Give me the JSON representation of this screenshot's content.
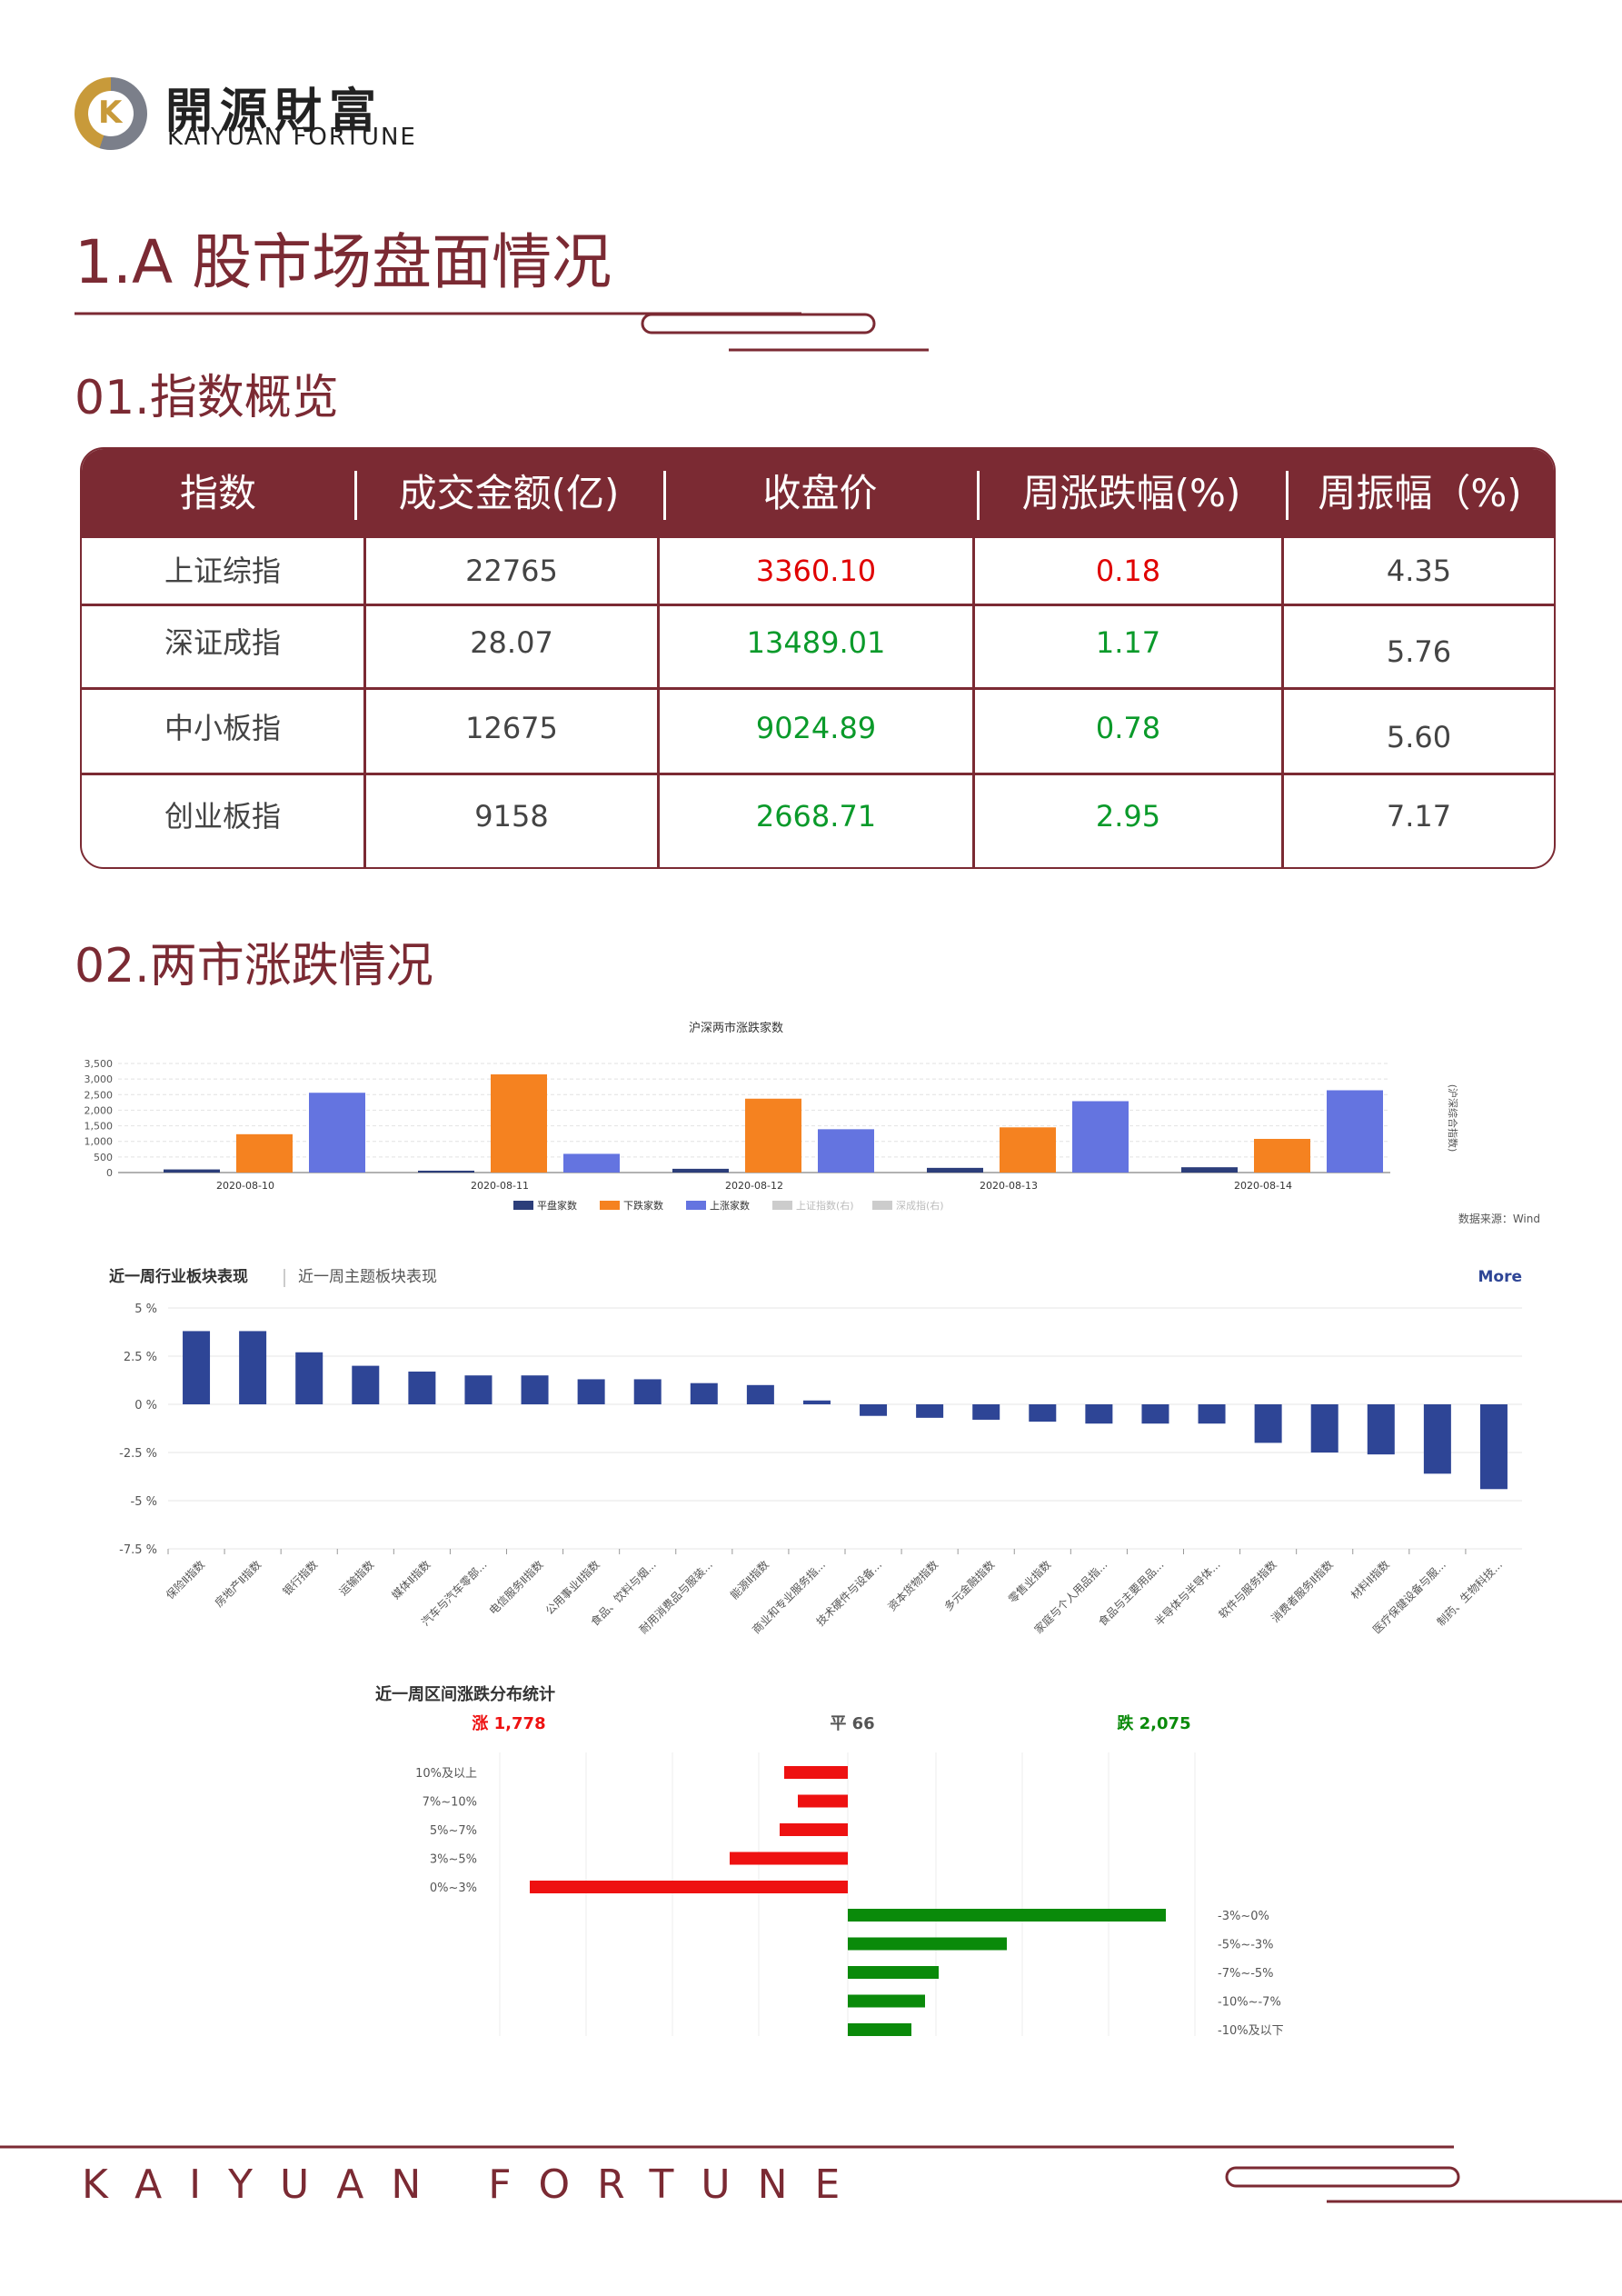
{
  "brand": {
    "cn": "開源財富",
    "en": "KAIYUAN FORTUNE"
  },
  "section_title": "1.A 股市场盘面情况",
  "sub1": "01.指数概览",
  "sub2": "02.两市涨跌情况",
  "table": {
    "headers": [
      "指数",
      "成交金额(亿)",
      "收盘价",
      "周涨跌幅(%)",
      "周振幅（%)"
    ],
    "rows": [
      {
        "name": "上证综指",
        "amount": "22765",
        "close": "3360.10",
        "chg": "0.18",
        "amp": "4.35",
        "close_color": "red",
        "chg_color": "red"
      },
      {
        "name": "深证成指",
        "amount": "28.07",
        "close": "13489.01",
        "chg": "1.17",
        "amp": "5.76",
        "close_color": "green",
        "chg_color": "green"
      },
      {
        "name": "中小板指",
        "amount": "12675",
        "close": "9024.89",
        "chg": "0.78",
        "amp": "5.60",
        "close_color": "green",
        "chg_color": "green"
      },
      {
        "name": "创业板指",
        "amount": "9158",
        "close": "2668.71",
        "chg": "2.95",
        "amp": "7.17",
        "close_color": "green",
        "chg_color": "green"
      }
    ]
  },
  "chart1_source": "数据来源：Wind",
  "chart2_tabs": [
    "近一周行业板块表现",
    "近一周主题板块表现"
  ],
  "chart2_more": "More",
  "chart3_title": "近一周区间涨跌分布统计",
  "chart3_summary": {
    "up": "涨 1,778",
    "flat": "平 66",
    "down": "跌 2,075"
  },
  "chart_data": [
    {
      "type": "bar",
      "title": "沪深两市涨跌家数",
      "categories": [
        "2020-08-10",
        "2020-08-11",
        "2020-08-12",
        "2020-08-13",
        "2020-08-14"
      ],
      "series": [
        {
          "name": "平盘家数",
          "color": "#2c3e7a",
          "values": [
            100,
            60,
            120,
            150,
            170
          ]
        },
        {
          "name": "下跌家数",
          "color": "#f58220",
          "values": [
            1230,
            3150,
            2370,
            1450,
            1080
          ]
        },
        {
          "name": "上涨家数",
          "color": "#6474e0",
          "values": [
            2560,
            600,
            1390,
            2290,
            2640
          ]
        }
      ],
      "legend_extra": [
        "上证指数(右)",
        "深成指(右)"
      ],
      "ylim": [
        0,
        3500
      ],
      "yticks": [
        "3,500",
        "3,000",
        "2,500",
        "2,000",
        "1,500",
        "1,000",
        "500",
        "0"
      ],
      "right_axis_label": "(沪深综合指数)"
    },
    {
      "type": "bar",
      "categories": [
        "保险Ⅱ指数",
        "房地产Ⅱ指数",
        "银行指数",
        "运输指数",
        "媒体Ⅱ指数",
        "汽车与汽车零部...",
        "电信服务Ⅱ指数",
        "公用事业Ⅱ指数",
        "食品、饮料与烟...",
        "耐用消费品与服装...",
        "能源Ⅱ指数",
        "商业和专业服务指...",
        "技术硬件与设备...",
        "资本货物指数",
        "多元金融指数",
        "零售业指数",
        "家庭与个人用品指...",
        "食品与主要用品...",
        "半导体与半导体...",
        "软件与服务指数",
        "消费者服务Ⅱ指数",
        "材料Ⅱ指数",
        "医疗保健设备与服...",
        "制药、生物科技..."
      ],
      "values": [
        3.8,
        3.8,
        2.7,
        2.0,
        1.7,
        1.5,
        1.5,
        1.3,
        1.3,
        1.1,
        1.0,
        0.2,
        -0.6,
        -0.7,
        -0.8,
        -0.9,
        -1.0,
        -1.0,
        -1.0,
        -2.0,
        -2.5,
        -2.6,
        -3.6,
        -4.4
      ],
      "ylim": [
        -7.5,
        5
      ],
      "yticks": [
        "5 %",
        "2.5 %",
        "0 %",
        "-2.5 %",
        "-5 %",
        "-7.5 %"
      ],
      "color": "#2e4596"
    },
    {
      "type": "bar",
      "orientation": "horizontal",
      "up": {
        "labels": [
          "10%及以上",
          "7%~10%",
          "5%~7%",
          "3%~5%",
          "0%~3%"
        ],
        "values": [
          70,
          55,
          75,
          130,
          350
        ],
        "color": "#ee1111"
      },
      "down": {
        "labels": [
          "-3%~0%",
          "-5%~-3%",
          "-7%~-5%",
          "-10%~-7%",
          "-10%及以下"
        ],
        "values": [
          350,
          175,
          100,
          85,
          70
        ],
        "color": "#0a8a0a"
      }
    }
  ]
}
